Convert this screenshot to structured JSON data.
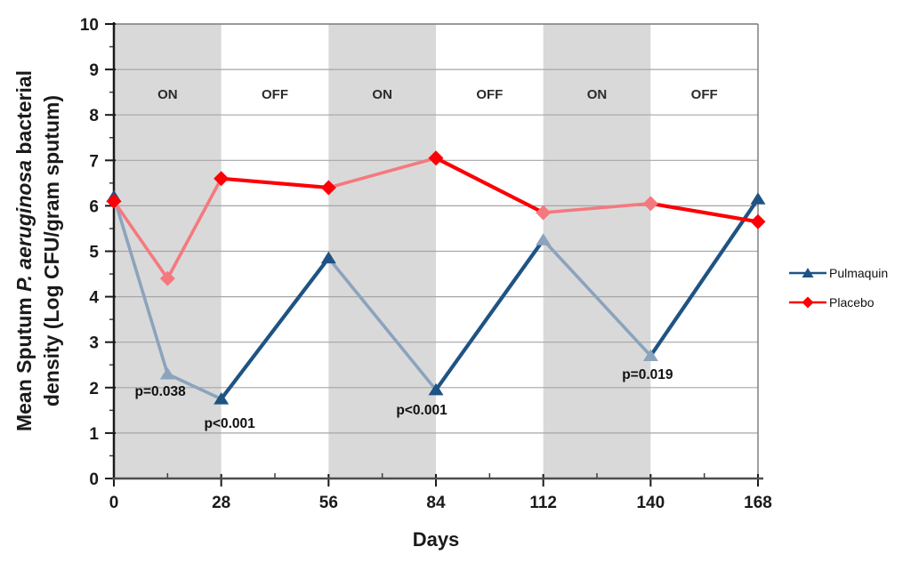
{
  "chart_data": {
    "type": "line",
    "title": "",
    "xlabel": "Days",
    "ylabel": "Mean Sputum P. aeruginosa bacterial density (Log CFU/gram sputum)",
    "xlim": [
      0,
      168
    ],
    "ylim": [
      0,
      10
    ],
    "x_ticks": [
      0,
      28,
      56,
      84,
      112,
      140,
      168
    ],
    "x_minor_ticks": [
      14,
      42,
      70,
      98,
      126,
      154
    ],
    "y_ticks": [
      0,
      1,
      2,
      3,
      4,
      5,
      6,
      7,
      8,
      9,
      10
    ],
    "y_minor_step": 0.5,
    "grid": "horizontal",
    "legend_position": "right-outside",
    "x": [
      0,
      14,
      28,
      56,
      84,
      112,
      140,
      168
    ],
    "series": [
      {
        "name": "Pulmaquin",
        "marker": "triangle",
        "values": [
          6.2,
          2.3,
          1.75,
          4.85,
          1.95,
          5.25,
          2.7,
          6.15
        ],
        "color_dark": "#1E5384",
        "color_light": "#8CA3BC",
        "segment_shades": [
          "light",
          "light",
          "dark",
          "light",
          "dark",
          "light",
          "dark"
        ],
        "marker_shades": [
          "dark",
          "light",
          "dark",
          "dark",
          "dark",
          "light",
          "light",
          "dark"
        ]
      },
      {
        "name": "Placebo",
        "marker": "diamond",
        "values": [
          6.1,
          4.4,
          6.6,
          6.4,
          7.05,
          5.85,
          6.05,
          5.65
        ],
        "color_dark": "#FB0006",
        "color_light": "#F4797E",
        "segment_shades": [
          "light",
          "light",
          "dark",
          "light",
          "dark",
          "light",
          "dark"
        ],
        "marker_shades": [
          "dark",
          "light",
          "dark",
          "dark",
          "dark",
          "light",
          "light",
          "dark"
        ]
      }
    ],
    "bands": [
      {
        "from": 0,
        "to": 28,
        "label": "ON"
      },
      {
        "from": 28,
        "to": 56,
        "label": "OFF"
      },
      {
        "from": 56,
        "to": 84,
        "label": "ON"
      },
      {
        "from": 84,
        "to": 112,
        "label": "OFF"
      },
      {
        "from": 112,
        "to": 140,
        "label": "ON"
      },
      {
        "from": 140,
        "to": 168,
        "label": "OFF"
      }
    ],
    "band_label_value": 8.45,
    "annotations": [
      {
        "text": "p=0.038",
        "day": 12.1,
        "value": 1.92
      },
      {
        "text": "p<0.001",
        "day": 30.2,
        "value": 1.21
      },
      {
        "text": "p<0.001",
        "day": 80.3,
        "value": 1.51
      },
      {
        "text": "p=0.019",
        "day": 139.2,
        "value": 2.29
      }
    ]
  },
  "labels": {
    "y_title_prefix": "Mean Sputum ",
    "y_title_italic": "P. aeruginosa",
    "y_title_suffix": " bacterial",
    "y_title_line2": "density (Log CFU/gram sputum)",
    "x_title": "Days"
  },
  "legend": {
    "items": [
      {
        "label": "Pulmaquin"
      },
      {
        "label": "Placebo"
      }
    ]
  },
  "colors": {
    "band_on_fill": "#D9D9D9",
    "gridline": "#A6A6A6",
    "plot_border": "#808080",
    "axis": "#1a1a1a",
    "x_axis_line": "#4d4d4d",
    "background": "#FFFFFF",
    "text": "#1a1a1a"
  }
}
